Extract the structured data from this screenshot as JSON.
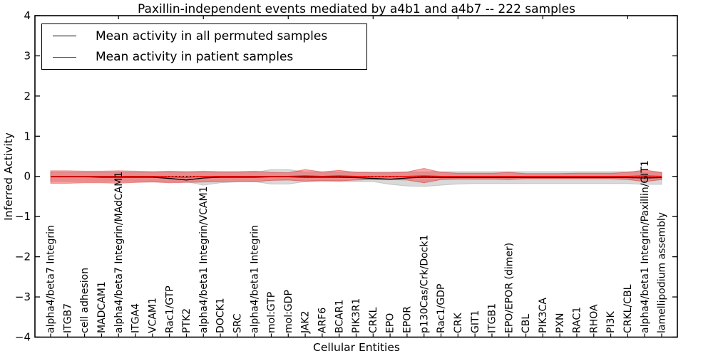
{
  "chart_data": {
    "type": "line",
    "title": "Paxillin-independent events mediated by a4b1 and a4b7 -- 222 samples",
    "xlabel": "Cellular Entities",
    "ylabel": "Inferred Activity",
    "ylim": [
      -4,
      4
    ],
    "yticks": [
      4,
      3,
      2,
      1,
      0,
      -1,
      -2,
      -3,
      -4
    ],
    "ytick_labels": [
      "4",
      "3",
      "2",
      "1",
      "0",
      "−1",
      "−2",
      "−3",
      "−4"
    ],
    "grid": false,
    "legend_position": "upper left",
    "legend": [
      "Mean activity in all permuted samples",
      "Mean activity in patient samples"
    ],
    "colors": {
      "permuted_line": "#000000",
      "patient_line": "#ff0000",
      "patient_band_fill": "#ff0000",
      "patient_band_alpha": 0.35,
      "permuted_band_fill": "#000000",
      "permuted_band_alpha": 0.15,
      "axes": "#000000",
      "background": "#ffffff"
    },
    "categories": [
      "alpha4/beta7 Integrin",
      "ITGB7",
      "cell adhesion",
      "MADCAM1",
      "alpha4/beta7 Integrin/MAdCAM1",
      "ITGA4",
      "VCAM1",
      "Rac1/GTP",
      "PTK2",
      "alpha4/beta1 Integrin/VCAM1",
      "DOCK1",
      "SRC",
      "alpha4/beta1 Integrin",
      "mol:GTP",
      "mol:GDP",
      "JAK2",
      "ARF6",
      "BCAR1",
      "PIK3R1",
      "CRKL",
      "EPO",
      "EPOR",
      "p130Cas/Crk/Dock1",
      "Rac1/GDP",
      "CRK",
      "GIT1",
      "ITGB1",
      "EPO/EPOR (dimer)",
      "CBL",
      "PIK3CA",
      "PXN",
      "RAC1",
      "RHOA",
      "PI3K",
      "CRKL/CBL",
      "alpha4/beta1 Integrin/Paxillin/GIT1",
      "lamellipodium assembly"
    ],
    "top_tick_indices": [
      4,
      9,
      14,
      19,
      24,
      29,
      34
    ],
    "series": [
      {
        "name": "Mean activity in all permuted samples",
        "values": [
          -0.01,
          -0.01,
          -0.01,
          -0.02,
          -0.02,
          -0.02,
          -0.02,
          -0.05,
          -0.09,
          -0.04,
          -0.02,
          -0.02,
          -0.02,
          -0.01,
          -0.01,
          -0.02,
          -0.02,
          -0.02,
          -0.03,
          -0.05,
          -0.07,
          -0.04,
          -0.02,
          -0.03,
          -0.03,
          -0.03,
          -0.03,
          -0.03,
          -0.03,
          -0.03,
          -0.03,
          -0.03,
          -0.03,
          -0.03,
          -0.03,
          -0.04,
          -0.03
        ]
      },
      {
        "name": "Mean activity in patient samples",
        "values": [
          0,
          0,
          0,
          0,
          0,
          0,
          0,
          -0.01,
          -0.02,
          0,
          0,
          0,
          0,
          0,
          0,
          0.01,
          0,
          0.01,
          0,
          -0.01,
          -0.01,
          0,
          0.01,
          0,
          0,
          0,
          0,
          0,
          0,
          0,
          0,
          0,
          0,
          0,
          0,
          0.01,
          0
        ]
      },
      {
        "name": "Permuted samples std band",
        "upper": [
          0.1,
          0.1,
          0.1,
          0.1,
          0.1,
          0.1,
          0.1,
          0.1,
          0.1,
          0.1,
          0.1,
          0.1,
          0.1,
          0.17,
          0.17,
          0.11,
          0.11,
          0.11,
          0.11,
          0.11,
          0.11,
          0.11,
          0.11,
          0.12,
          0.12,
          0.12,
          0.12,
          0.12,
          0.12,
          0.12,
          0.12,
          0.12,
          0.12,
          0.12,
          0.12,
          0.12,
          0.1
        ],
        "lower": [
          -0.12,
          -0.12,
          -0.12,
          -0.12,
          -0.12,
          -0.12,
          -0.12,
          -0.13,
          -0.13,
          -0.22,
          -0.16,
          -0.14,
          -0.13,
          -0.19,
          -0.19,
          -0.13,
          -0.13,
          -0.13,
          -0.13,
          -0.13,
          -0.2,
          -0.24,
          -0.25,
          -0.22,
          -0.19,
          -0.18,
          -0.18,
          -0.18,
          -0.18,
          -0.18,
          -0.18,
          -0.18,
          -0.18,
          -0.18,
          -0.18,
          -0.2,
          -0.2
        ]
      },
      {
        "name": "Patient samples std band",
        "upper": [
          0.14,
          0.14,
          0.13,
          0.13,
          0.14,
          0.13,
          0.12,
          0.13,
          0.12,
          0.13,
          0.12,
          0.12,
          0.13,
          0.1,
          0.09,
          0.17,
          0.11,
          0.15,
          0.1,
          0.09,
          0.09,
          0.11,
          0.2,
          0.1,
          0.08,
          0.08,
          0.08,
          0.1,
          0.07,
          0.07,
          0.07,
          0.08,
          0.08,
          0.08,
          0.1,
          0.16,
          0.1
        ],
        "lower": [
          -0.17,
          -0.17,
          -0.16,
          -0.16,
          -0.17,
          -0.15,
          -0.14,
          -0.16,
          -0.15,
          -0.14,
          -0.13,
          -0.12,
          -0.13,
          -0.1,
          -0.09,
          -0.12,
          -0.1,
          -0.11,
          -0.09,
          -0.08,
          -0.08,
          -0.09,
          -0.16,
          -0.08,
          -0.07,
          -0.07,
          -0.07,
          -0.08,
          -0.06,
          -0.06,
          -0.06,
          -0.06,
          -0.06,
          -0.06,
          -0.08,
          -0.13,
          -0.08
        ]
      }
    ],
    "zero_line": 0
  }
}
